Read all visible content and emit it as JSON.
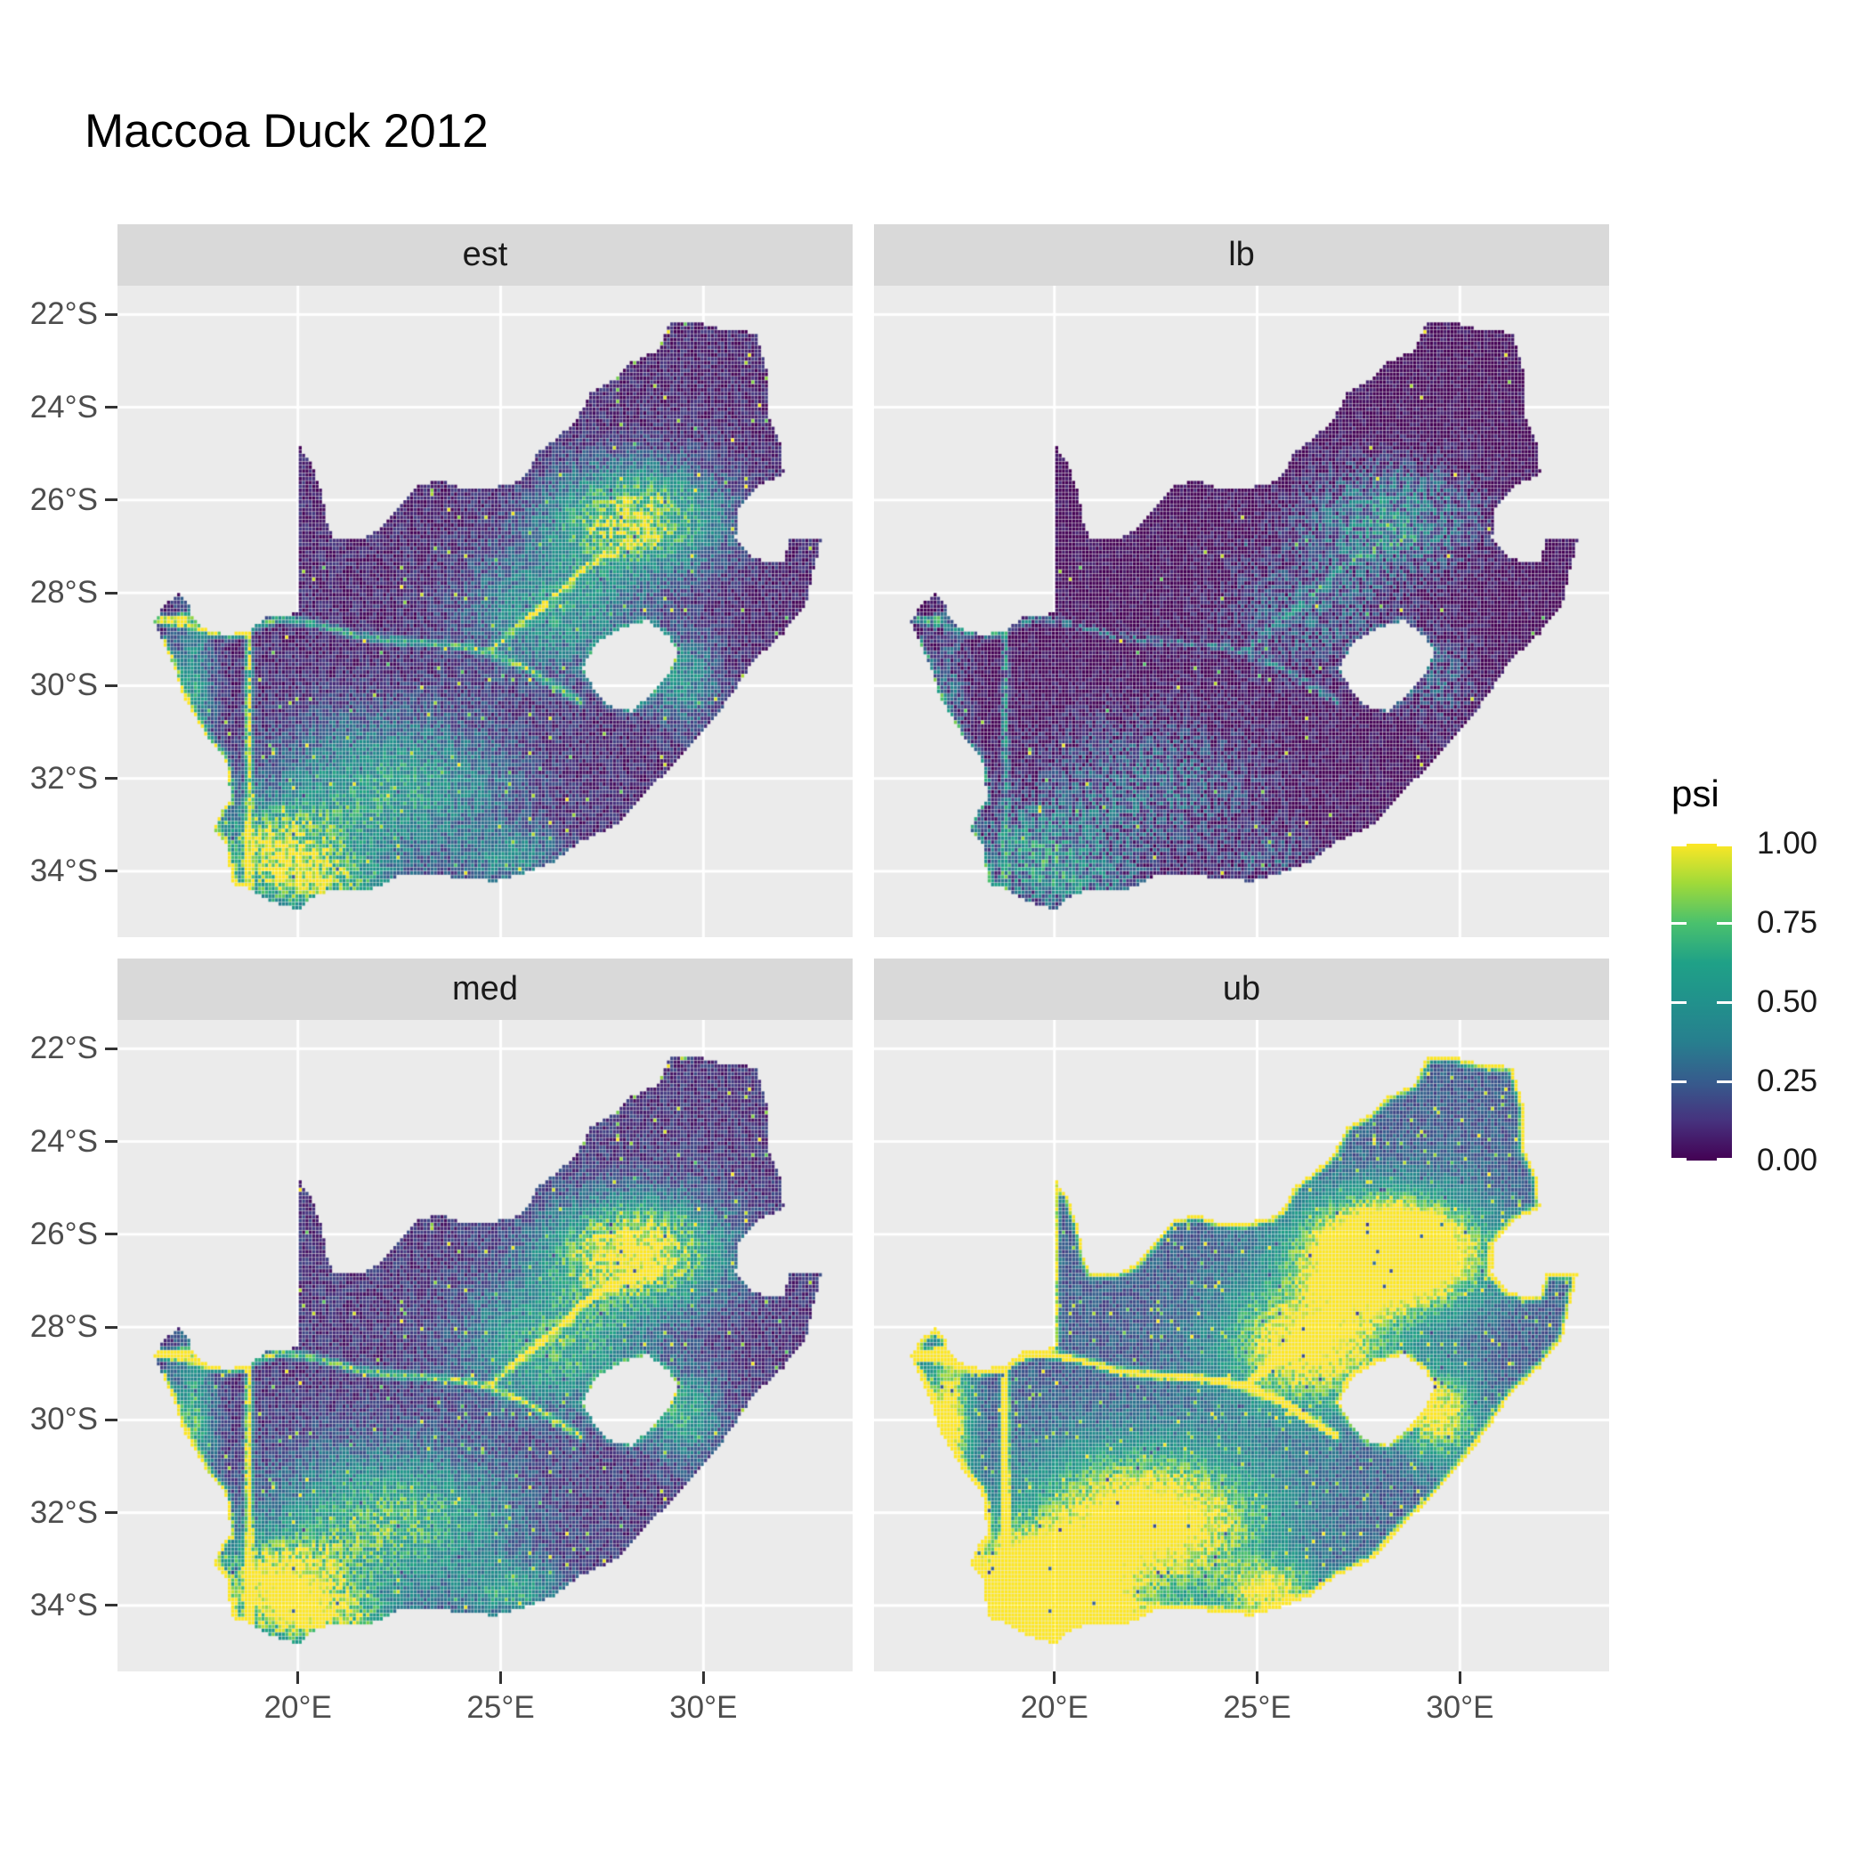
{
  "title": "Maccoa Duck 2012",
  "facets": [
    {
      "label": "est"
    },
    {
      "label": "lb"
    },
    {
      "label": "med"
    },
    {
      "label": "ub"
    }
  ],
  "axes": {
    "x": {
      "labels": [
        "20°E",
        "25°E",
        "30°E"
      ],
      "values": [
        20,
        25,
        30
      ]
    },
    "y": {
      "labels": [
        "22°S",
        "24°S",
        "26°S",
        "28°S",
        "30°S",
        "32°S",
        "34°S"
      ],
      "values": [
        -22,
        -24,
        -26,
        -28,
        -30,
        -32,
        -34
      ]
    }
  },
  "legend": {
    "title": "psi",
    "tick_labels": [
      "1.00",
      "0.75",
      "0.50",
      "0.25",
      "0.00"
    ],
    "tick_values": [
      1,
      0.75,
      0.5,
      0.25,
      0
    ]
  },
  "colors": {
    "background": "#FFFFFF",
    "panel_bg": "#EBEBEB",
    "strip_bg": "#D9D9D9",
    "strip_text": "#1A1A1A",
    "grid": "#FFFFFF",
    "axis_text": "#4D4D4D",
    "tick_mark": "#333333",
    "title_text": "#000000",
    "viridis": [
      [
        0,
        "#440154"
      ],
      [
        0.125,
        "#46327E"
      ],
      [
        0.25,
        "#365C8D"
      ],
      [
        0.375,
        "#277F8E"
      ],
      [
        0.5,
        "#21918C"
      ],
      [
        0.625,
        "#1FA187"
      ],
      [
        0.75,
        "#4AC16D"
      ],
      [
        0.875,
        "#A0DA39"
      ],
      [
        1,
        "#FDE725"
      ]
    ]
  },
  "chart_data": {
    "type": "heatmap",
    "title": "Maccoa Duck 2012",
    "variable": "psi",
    "facets": [
      "est",
      "lb",
      "med",
      "ub"
    ],
    "xlabel": "",
    "ylabel": "",
    "x_ticks": [
      20,
      25,
      30
    ],
    "y_ticks": [
      -22,
      -24,
      -26,
      -28,
      -30,
      -32,
      -34
    ],
    "x_range": [
      15.55,
      33.68
    ],
    "y_range": [
      -35.42,
      -21.38
    ],
    "grid": "major only, white on gray panel",
    "legend_position": "right",
    "color_scale": {
      "name": "viridis",
      "limits": [
        0,
        1
      ],
      "breaks": [
        0,
        0.25,
        0.5,
        0.75,
        1
      ]
    },
    "resolution_deg": 0.0833,
    "region": "South Africa raster (Lesotho and Eswatini shown as holes)",
    "facet_params": [
      {
        "name": "est",
        "gain": 1.0,
        "offset": 0.02,
        "speckle": 0.988
      },
      {
        "name": "lb",
        "gain": 0.5,
        "offset": -0.02,
        "speckle": 0.995
      },
      {
        "name": "med",
        "gain": 1.22,
        "offset": 0.05,
        "speckle": 0.985
      },
      {
        "name": "ub",
        "gain": 2.1,
        "offset": 0.12,
        "speckle": 0.97
      }
    ],
    "outline": [
      [
        16.45,
        -28.58
      ],
      [
        16.78,
        -28.22
      ],
      [
        17.06,
        -28.03
      ],
      [
        17.33,
        -28.23
      ],
      [
        17.4,
        -28.55
      ],
      [
        17.72,
        -28.78
      ],
      [
        18.25,
        -28.9
      ],
      [
        18.78,
        -28.83
      ],
      [
        19.25,
        -28.5
      ],
      [
        19.7,
        -28.52
      ],
      [
        19.99,
        -28.4
      ],
      [
        19.99,
        -24.77
      ],
      [
        20.38,
        -25.3
      ],
      [
        20.62,
        -25.95
      ],
      [
        20.72,
        -26.45
      ],
      [
        20.88,
        -26.8
      ],
      [
        21.5,
        -26.85
      ],
      [
        22.05,
        -26.62
      ],
      [
        22.58,
        -26.05
      ],
      [
        22.92,
        -25.68
      ],
      [
        23.48,
        -25.58
      ],
      [
        24.0,
        -25.72
      ],
      [
        24.65,
        -25.78
      ],
      [
        25.35,
        -25.62
      ],
      [
        25.62,
        -25.48
      ],
      [
        25.92,
        -24.98
      ],
      [
        26.42,
        -24.63
      ],
      [
        26.88,
        -24.28
      ],
      [
        27.22,
        -23.66
      ],
      [
        27.72,
        -23.45
      ],
      [
        28.22,
        -23.03
      ],
      [
        28.85,
        -22.78
      ],
      [
        29.18,
        -22.2
      ],
      [
        29.72,
        -22.14
      ],
      [
        30.35,
        -22.3
      ],
      [
        31.3,
        -22.4
      ],
      [
        31.56,
        -23.2
      ],
      [
        31.56,
        -24.1
      ],
      [
        31.9,
        -24.8
      ],
      [
        31.98,
        -25.43
      ],
      [
        31.3,
        -25.73
      ],
      [
        30.82,
        -26.25
      ],
      [
        30.8,
        -26.8
      ],
      [
        31.15,
        -27.2
      ],
      [
        31.6,
        -27.33
      ],
      [
        31.98,
        -27.31
      ],
      [
        32.13,
        -26.85
      ],
      [
        32.89,
        -26.86
      ],
      [
        32.55,
        -28.2
      ],
      [
        32.0,
        -28.85
      ],
      [
        31.25,
        -29.45
      ],
      [
        30.65,
        -30.25
      ],
      [
        30.0,
        -31.0
      ],
      [
        29.3,
        -31.7
      ],
      [
        28.55,
        -32.3
      ],
      [
        27.85,
        -33.0
      ],
      [
        27.0,
        -33.35
      ],
      [
        26.35,
        -33.78
      ],
      [
        25.65,
        -34.02
      ],
      [
        24.82,
        -34.22
      ],
      [
        23.6,
        -34.1
      ],
      [
        22.55,
        -34.08
      ],
      [
        21.75,
        -34.42
      ],
      [
        20.5,
        -34.46
      ],
      [
        20.0,
        -34.83
      ],
      [
        19.3,
        -34.64
      ],
      [
        18.8,
        -34.38
      ],
      [
        18.43,
        -34.33
      ],
      [
        18.33,
        -34.05
      ],
      [
        18.22,
        -33.42
      ],
      [
        17.93,
        -33.1
      ],
      [
        18.1,
        -32.72
      ],
      [
        18.32,
        -32.5
      ],
      [
        18.3,
        -31.95
      ],
      [
        18.18,
        -31.55
      ],
      [
        17.82,
        -31.2
      ],
      [
        17.52,
        -30.75
      ],
      [
        17.18,
        -30.25
      ],
      [
        16.93,
        -29.55
      ],
      [
        16.68,
        -29.05
      ]
    ],
    "lesotho": [
      [
        27.02,
        -29.62
      ],
      [
        27.38,
        -29.05
      ],
      [
        27.78,
        -28.86
      ],
      [
        28.18,
        -28.7
      ],
      [
        28.62,
        -28.6
      ],
      [
        29.12,
        -28.92
      ],
      [
        29.38,
        -29.28
      ],
      [
        29.12,
        -29.78
      ],
      [
        28.78,
        -30.12
      ],
      [
        28.22,
        -30.55
      ],
      [
        27.72,
        -30.45
      ],
      [
        27.35,
        -30.12
      ]
    ],
    "rivers": [
      [
        [
          16.5,
          -28.6
        ],
        [
          17.6,
          -28.76
        ],
        [
          18.6,
          -28.8
        ],
        [
          19.6,
          -28.55
        ],
        [
          20.6,
          -28.7
        ],
        [
          21.6,
          -28.95
        ],
        [
          22.6,
          -29.05
        ],
        [
          23.6,
          -29.1
        ],
        [
          24.6,
          -29.25
        ],
        [
          25.6,
          -29.6
        ],
        [
          26.4,
          -30.05
        ],
        [
          26.95,
          -30.35
        ]
      ],
      [
        [
          24.75,
          -29.25
        ],
        [
          25.55,
          -28.65
        ],
        [
          26.35,
          -28.05
        ],
        [
          27.25,
          -27.35
        ],
        [
          28.15,
          -26.95
        ],
        [
          28.9,
          -26.8
        ]
      ]
    ],
    "hotspots": [
      {
        "x": 28.3,
        "y": -26.4,
        "sx": 2.0,
        "sy": 1.1,
        "a": 0.85
      },
      {
        "x": 26.3,
        "y": -28.4,
        "sx": 2.0,
        "sy": 1.3,
        "a": 0.45
      },
      {
        "x": 19.6,
        "y": -33.6,
        "sx": 1.6,
        "sy": 0.95,
        "a": 0.85
      },
      {
        "x": 22.3,
        "y": -32.2,
        "sx": 2.8,
        "sy": 1.5,
        "a": 0.5
      },
      {
        "x": 17.4,
        "y": -30.0,
        "sx": 0.5,
        "sy": 1.6,
        "a": 0.45
      },
      {
        "x": 20.8,
        "y": -34.3,
        "sx": 1.6,
        "sy": 0.55,
        "a": 0.45
      },
      {
        "x": 29.5,
        "y": -29.9,
        "sx": 0.9,
        "sy": 0.9,
        "a": 0.4
      },
      {
        "x": 25.3,
        "y": -33.7,
        "sx": 1.1,
        "sy": 0.6,
        "a": 0.35
      }
    ]
  }
}
